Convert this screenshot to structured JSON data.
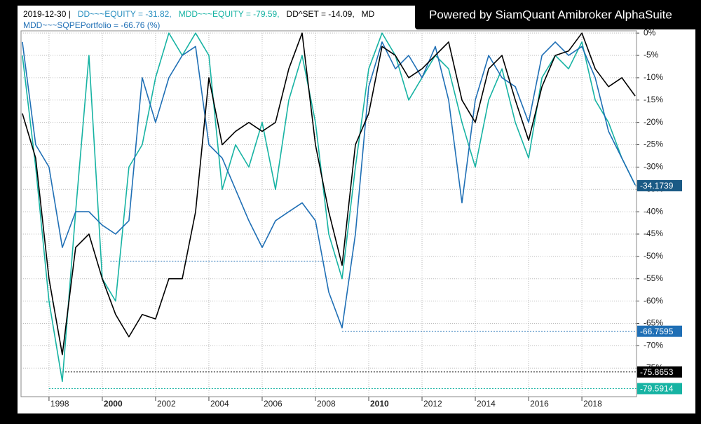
{
  "chart_data": {
    "type": "line",
    "header": [
      {
        "text": "2019-12-30   |",
        "color": "#000000",
        "line": 1
      },
      {
        "text": "DD~~~EQUITY = -31.82,",
        "color": "#2a8fc0",
        "line": 1
      },
      {
        "text": "MDD~~~EQUITY = -79.59,",
        "color": "#17b3a3",
        "line": 1
      },
      {
        "text": "DD^SET = -14.09,",
        "color": "#000000",
        "line": 1
      },
      {
        "text": "MD",
        "color": "#000000",
        "line": 1
      },
      {
        "text": "MDD~~~SQPEPortfolio = -66.76 (%)",
        "color": "#1f6fb5",
        "line": 2
      }
    ],
    "watermark": "Powered by SiamQuant Amibroker AlphaSuite",
    "x": [
      1997.0,
      1997.5,
      1998.0,
      1998.5,
      1999.0,
      1999.5,
      2000.0,
      2000.5,
      2001.0,
      2001.5,
      2002.0,
      2002.5,
      2003.0,
      2003.5,
      2004.0,
      2004.5,
      2005.0,
      2005.5,
      2006.0,
      2006.5,
      2007.0,
      2007.5,
      2008.0,
      2008.5,
      2009.0,
      2009.5,
      2010.0,
      2010.5,
      2011.0,
      2011.5,
      2012.0,
      2012.5,
      2013.0,
      2013.5,
      2014.0,
      2014.5,
      2015.0,
      2015.5,
      2016.0,
      2016.5,
      2017.0,
      2017.5,
      2018.0,
      2018.5,
      2019.0,
      2019.5,
      2020.0
    ],
    "series": [
      {
        "color": "#17b3a3",
        "values": [
          -5,
          -30,
          -60,
          -78,
          -40,
          -5,
          -55,
          -60,
          -30,
          -25,
          -10,
          0,
          -5,
          0,
          -5,
          -35,
          -25,
          -30,
          -20,
          -35,
          -15,
          -5,
          -20,
          -45,
          -55,
          -30,
          -8,
          0,
          -5,
          -15,
          -10,
          -5,
          -8,
          -20,
          -30,
          -15,
          -8,
          -20,
          -28,
          -10,
          -5,
          -8,
          -2,
          -15,
          -20,
          -28,
          -34
        ]
      },
      {
        "color": "#1f6fb5",
        "values": [
          -2,
          -25,
          -30,
          -48,
          -40,
          -40,
          -43,
          -45,
          -42,
          -10,
          -20,
          -10,
          -5,
          -3,
          -25,
          -28,
          -35,
          -42,
          -48,
          -42,
          -40,
          -38,
          -42,
          -58,
          -66,
          -45,
          -12,
          -2,
          -8,
          -5,
          -10,
          -3,
          -15,
          -38,
          -15,
          -5,
          -10,
          -12,
          -20,
          -5,
          -2,
          -5,
          -3,
          -10,
          -22,
          -28,
          -34
        ]
      },
      {
        "color": "#000000",
        "values": [
          -18,
          -28,
          -55,
          -72,
          -48,
          -45,
          -55,
          -63,
          -68,
          -63,
          -64,
          -55,
          -55,
          -40,
          -10,
          -25,
          -22,
          -20,
          -22,
          -20,
          -8,
          0,
          -25,
          -40,
          -52,
          -25,
          -18,
          -3,
          -5,
          -10,
          -8,
          -5,
          -2,
          -15,
          -20,
          -8,
          -5,
          -15,
          -24,
          -12,
          -5,
          -4,
          0,
          -8,
          -12,
          -10,
          -14.09
        ]
      }
    ],
    "levels": [
      {
        "value": -51.1,
        "from": 2000.3,
        "to": 2008.6,
        "color": "#1f6fb5"
      },
      {
        "value": -60.2,
        "from": 1997.9,
        "to": 1998.2,
        "color": "#17b3a3"
      },
      {
        "value": -34.1739,
        "label": "-34.1739",
        "from": 2020.0,
        "to": 2020.0,
        "color": "#1a5a85"
      },
      {
        "value": -66.7595,
        "label": "-66.7595",
        "from": 2009.0,
        "to": 2020.0,
        "color": "#1f6fb5"
      },
      {
        "value": -75.8653,
        "label": "-75.8653",
        "from": 1998.5,
        "to": 2020.0,
        "color": "#000000"
      },
      {
        "value": -79.5914,
        "label": "-79.5914",
        "from": 1998.0,
        "to": 2020.0,
        "color": "#17b3a3"
      }
    ],
    "xlim": [
      1996.95,
      2020.05
    ],
    "xticks": [
      1998,
      2000,
      2002,
      2004,
      2006,
      2008,
      2010,
      2012,
      2014,
      2016,
      2018
    ],
    "ylim": [
      -81.4,
      0.5
    ],
    "yticks": [
      {
        "value": 0,
        "label": "0%"
      },
      {
        "value": -5,
        "label": "-5%"
      },
      {
        "value": -10,
        "label": "-10%"
      },
      {
        "value": -15,
        "label": "-15%"
      },
      {
        "value": -20,
        "label": "-20%"
      },
      {
        "value": -25,
        "label": "-25%"
      },
      {
        "value": -30,
        "label": "-30%"
      },
      {
        "value": -35,
        "label": "-35%"
      },
      {
        "value": -40,
        "label": "-40%"
      },
      {
        "value": -45,
        "label": "-45%"
      },
      {
        "value": -50,
        "label": "-50%"
      },
      {
        "value": -55,
        "label": "-55%"
      },
      {
        "value": -60,
        "label": "-60%"
      },
      {
        "value": -65,
        "label": "-65%"
      },
      {
        "value": -70,
        "label": "-70%"
      },
      {
        "value": -75,
        "label": "-75%"
      }
    ],
    "grid": true
  }
}
